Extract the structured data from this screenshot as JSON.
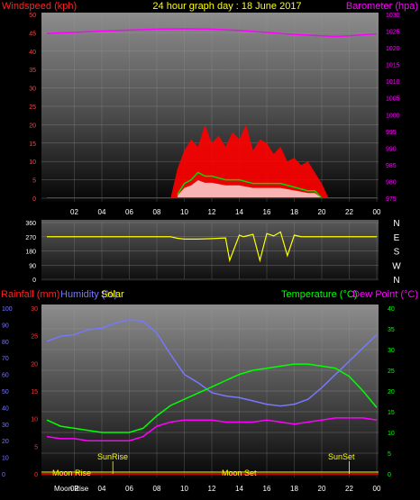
{
  "header": {
    "windspeed_label": "Windspeed (kph)",
    "title": "24 hour graph day : 18 June 2017",
    "barometer_label": "Barometer (hpa)"
  },
  "colors": {
    "wind": "#ff0000",
    "gust_max": "#00dd00",
    "gust_avg": "#ffffff",
    "barometer": "#ff00ff",
    "direction": "#ffff00",
    "rain": "#ff0000",
    "humidity": "#7777ff",
    "solar": "#ffff00",
    "temperature": "#00ff00",
    "dewpoint": "#ff00ff"
  },
  "chart_data": [
    {
      "type": "area",
      "name": "wind-barometer",
      "x_ticks": [
        "02",
        "04",
        "06",
        "08",
        "10",
        "12",
        "14",
        "16",
        "18",
        "20",
        "22",
        "00"
      ],
      "y_left": {
        "label": "Windspeed (kph)",
        "ticks": [
          0,
          5,
          10,
          15,
          20,
          25,
          30,
          35,
          40,
          45,
          50
        ],
        "range": [
          0,
          50
        ]
      },
      "y_right": {
        "label": "Barometer (hpa)",
        "ticks": [
          975,
          980,
          985,
          990,
          995,
          1000,
          1005,
          1010,
          1015,
          1020,
          1025,
          1030
        ],
        "range": [
          975,
          1030
        ]
      },
      "grid": true,
      "barometer": {
        "x": [
          0,
          2,
          4,
          6,
          8,
          10,
          12,
          14,
          16,
          18,
          20,
          21,
          22,
          24
        ],
        "y": [
          1024.3,
          1024.6,
          1025,
          1025.3,
          1025.6,
          1025.7,
          1025.6,
          1025.2,
          1024.6,
          1024,
          1023.6,
          1023.4,
          1023.6,
          1024.2
        ]
      },
      "wind_envelope": {
        "x": [
          9,
          9.5,
          10,
          10.5,
          11,
          11.5,
          12,
          12.5,
          13,
          13.5,
          14,
          14.5,
          15,
          15.5,
          16,
          16.5,
          17,
          17.5,
          18,
          18.5,
          19,
          19.5,
          20,
          20.5
        ],
        "y": [
          0,
          8,
          13,
          16,
          14,
          20,
          15,
          17,
          14,
          18,
          16,
          20,
          13,
          16,
          15,
          12,
          14,
          10,
          11,
          9,
          10,
          7,
          4,
          0
        ]
      },
      "gust_line": {
        "x": [
          9.5,
          10,
          10.5,
          11,
          11.5,
          12,
          13,
          14,
          15,
          16,
          17,
          18,
          19,
          19.5,
          20
        ],
        "y": [
          1,
          4,
          5,
          7,
          6,
          6,
          5,
          5,
          4,
          4,
          4,
          3,
          2,
          2,
          0
        ]
      }
    },
    {
      "type": "line",
      "name": "wind-direction",
      "y_ticks": [
        0,
        90,
        180,
        270,
        360
      ],
      "compass_labels": [
        "N",
        "W",
        "S",
        "E",
        "N"
      ],
      "y_range": [
        0,
        360
      ],
      "grid": true,
      "direction": {
        "x": [
          0,
          9,
          9.5,
          10,
          11,
          12,
          13,
          13.3,
          14,
          14.3,
          15,
          15.5,
          16,
          16.5,
          17,
          17.5,
          18,
          18.5,
          24
        ],
        "y": [
          270,
          270,
          260,
          255,
          255,
          258,
          262,
          120,
          280,
          270,
          285,
          120,
          290,
          275,
          300,
          150,
          280,
          270,
          270
        ]
      }
    },
    {
      "type": "line",
      "name": "rain-humidity-temperature",
      "labels": {
        "rainfall": "Rainfall (mm)",
        "humidity": "Humidity (%)",
        "solar": "Solar",
        "temperature": "Temperature (°C)",
        "dewpoint": "Dew Point (°C)"
      },
      "x_ticks": [
        "02",
        "04",
        "06",
        "08",
        "10",
        "12",
        "14",
        "16",
        "18",
        "20",
        "22",
        "00"
      ],
      "y_humidity_ticks": [
        0,
        10,
        20,
        30,
        40,
        50,
        60,
        70,
        80,
        90,
        100
      ],
      "y_rain_ticks": [
        0,
        5,
        10,
        15,
        20,
        25,
        30
      ],
      "y_temp_ticks": [
        0,
        5,
        10,
        15,
        20,
        25,
        30,
        35,
        40
      ],
      "grid": true,
      "annotations": {
        "sunrise": "SunRise",
        "sunset": "SunSet",
        "moonrise": "Moon Rise",
        "moonset": "Moon Set",
        "moonrise_bottom": "Moon Rise"
      },
      "humidity": {
        "x": [
          0,
          1,
          2,
          3,
          4,
          5,
          6,
          7,
          8,
          9,
          10,
          11,
          12,
          13,
          14,
          15,
          16,
          17,
          18,
          19,
          20,
          21,
          22,
          23,
          24
        ],
        "y": [
          80,
          83,
          84,
          87,
          88,
          91,
          93,
          92,
          85,
          72,
          60,
          55,
          49,
          47,
          46,
          44,
          42,
          41,
          42,
          45,
          52,
          60,
          68,
          76,
          84
        ]
      },
      "temperature": {
        "x": [
          0,
          1,
          2,
          3,
          4,
          5,
          6,
          7,
          8,
          9,
          10,
          11,
          12,
          13,
          14,
          15,
          16,
          17,
          18,
          19,
          20,
          21,
          22,
          23,
          24
        ],
        "y": [
          13,
          11.5,
          11,
          10.5,
          10,
          10,
          10,
          11,
          14,
          16.5,
          18,
          19.5,
          21,
          22.5,
          24,
          25,
          25.5,
          26,
          26.5,
          26.5,
          26,
          25.5,
          23.5,
          20,
          16
        ]
      },
      "dewpoint": {
        "x": [
          0,
          1,
          2,
          3,
          4,
          5,
          6,
          7,
          8,
          9,
          10,
          11,
          12,
          13,
          14,
          15,
          16,
          17,
          18,
          19,
          20,
          21,
          22,
          23,
          24
        ],
        "y": [
          9,
          8.5,
          8.5,
          8,
          8,
          8,
          8,
          9,
          11.5,
          12.5,
          13,
          13,
          13,
          12.5,
          12.5,
          12.5,
          13,
          12.5,
          12,
          12.5,
          13,
          13.5,
          13.5,
          13.5,
          13
        ]
      }
    }
  ]
}
